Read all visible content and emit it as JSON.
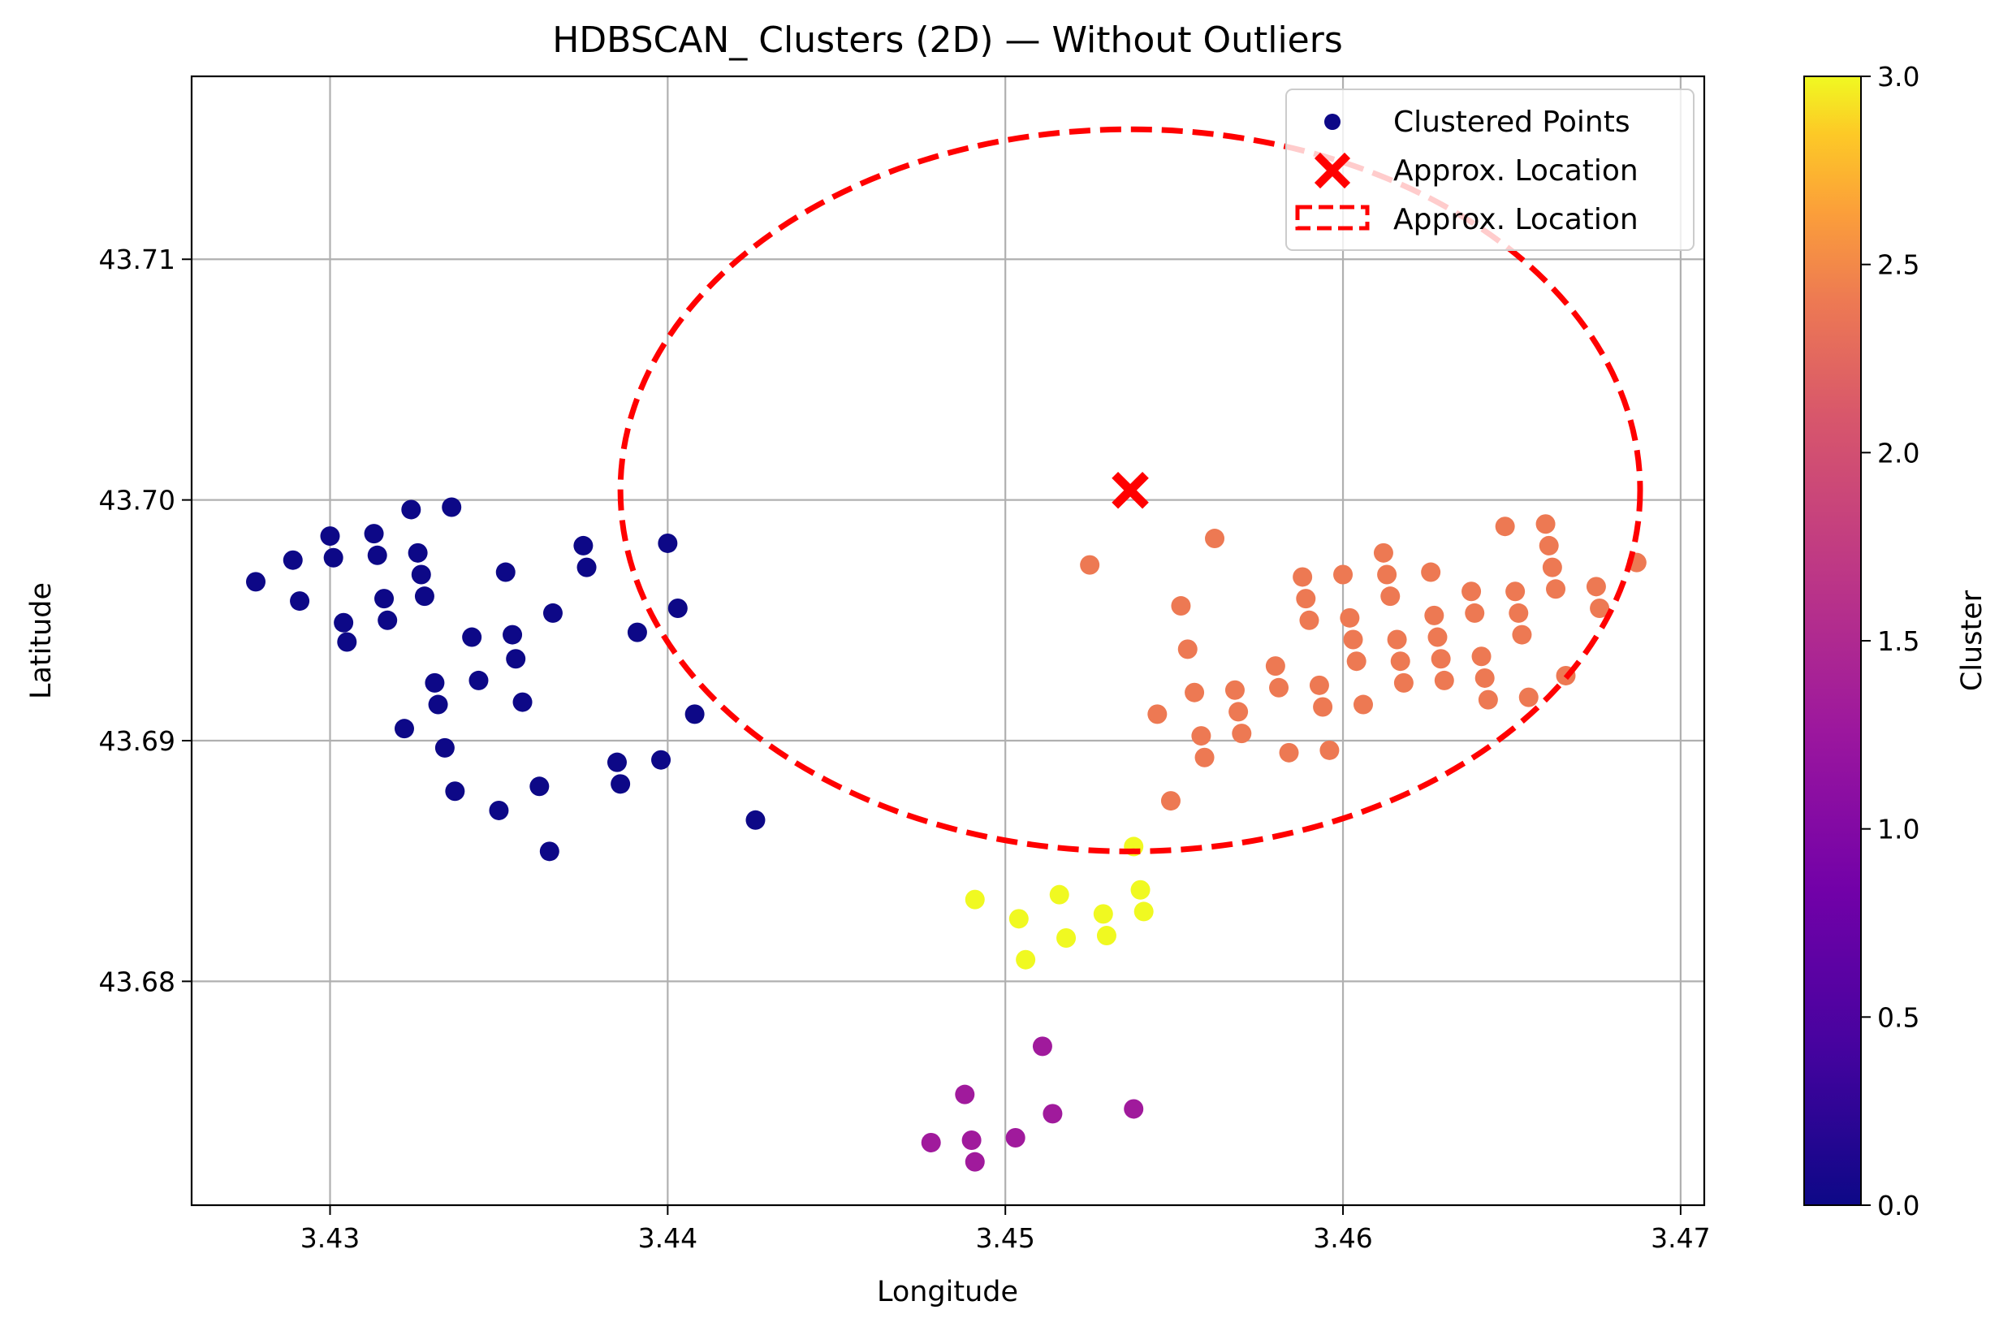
{
  "chart_data": {
    "type": "scatter",
    "title": "HDBSCAN_ Clusters (2D) — Without Outliers",
    "xlabel": "Longitude",
    "ylabel": "Latitude",
    "xlim": [
      3.4259,
      3.4707
    ],
    "ylim": [
      43.6707,
      43.7176
    ],
    "xticks": [
      "3.43",
      "3.44",
      "3.45",
      "3.46",
      "3.47"
    ],
    "yticks": [
      "43.68",
      "43.69",
      "43.70",
      "43.71"
    ],
    "grid": true,
    "legend_position": "upper-right",
    "legend": [
      {
        "label": "Clustered Points",
        "marker": "dot",
        "color": "#0d0887"
      },
      {
        "label": "Approx. Location",
        "marker": "x",
        "color": "#ff0000"
      },
      {
        "label": "Approx. Location",
        "marker": "dashed-box",
        "color": "#ff0000"
      }
    ],
    "colorbar": {
      "label": "Cluster",
      "min": 0.0,
      "max": 3.0,
      "ticks": [
        "0.0",
        "0.5",
        "1.0",
        "1.5",
        "2.0",
        "2.5",
        "3.0"
      ],
      "colormap": "plasma"
    },
    "clusters": [
      {
        "cluster": 0,
        "color": "#0d0887",
        "points": [
          [
            3.4278,
            43.6966
          ],
          [
            3.4289,
            43.6975
          ],
          [
            3.4291,
            43.6958
          ],
          [
            3.43,
            43.6985
          ],
          [
            3.4301,
            43.6976
          ],
          [
            3.4304,
            43.6949
          ],
          [
            3.4305,
            43.6941
          ],
          [
            3.4313,
            43.6986
          ],
          [
            3.4314,
            43.6977
          ],
          [
            3.4316,
            43.6959
          ],
          [
            3.4317,
            43.695
          ],
          [
            3.4322,
            43.6905
          ],
          [
            3.4324,
            43.6996
          ],
          [
            3.4326,
            43.6978
          ],
          [
            3.4327,
            43.6969
          ],
          [
            3.4328,
            43.696
          ],
          [
            3.4331,
            43.6924
          ],
          [
            3.4332,
            43.6915
          ],
          [
            3.4334,
            43.6897
          ],
          [
            3.4336,
            43.6997
          ],
          [
            3.4337,
            43.6879
          ],
          [
            3.4342,
            43.6943
          ],
          [
            3.4344,
            43.6925
          ],
          [
            3.435,
            43.6871
          ],
          [
            3.4352,
            43.697
          ],
          [
            3.4354,
            43.6944
          ],
          [
            3.4355,
            43.6934
          ],
          [
            3.4357,
            43.6916
          ],
          [
            3.4362,
            43.6881
          ],
          [
            3.4365,
            43.6854
          ],
          [
            3.4366,
            43.6953
          ],
          [
            3.4375,
            43.6981
          ],
          [
            3.4376,
            43.6972
          ],
          [
            3.4385,
            43.6891
          ],
          [
            3.4386,
            43.6882
          ],
          [
            3.4391,
            43.6945
          ],
          [
            3.4398,
            43.6892
          ],
          [
            3.44,
            43.6982
          ],
          [
            3.4403,
            43.6955
          ],
          [
            3.4408,
            43.6911
          ],
          [
            3.4426,
            43.6867
          ]
        ]
      },
      {
        "cluster": 1,
        "color": "#a01a9c",
        "points": [
          [
            3.4478,
            43.6733
          ],
          [
            3.4488,
            43.6753
          ],
          [
            3.449,
            43.6734
          ],
          [
            3.4491,
            43.6725
          ],
          [
            3.4503,
            43.6735
          ],
          [
            3.4511,
            43.6773
          ],
          [
            3.4514,
            43.6745
          ],
          [
            3.4538,
            43.6747
          ]
        ]
      },
      {
        "cluster": 2,
        "color": "#ed7953",
        "points": [
          [
            3.4525,
            43.6973
          ],
          [
            3.4545,
            43.6911
          ],
          [
            3.4549,
            43.6875
          ],
          [
            3.4552,
            43.6956
          ],
          [
            3.4554,
            43.6938
          ],
          [
            3.4556,
            43.692
          ],
          [
            3.4558,
            43.6902
          ],
          [
            3.4559,
            43.6893
          ],
          [
            3.4562,
            43.6984
          ],
          [
            3.4568,
            43.6921
          ],
          [
            3.4569,
            43.6912
          ],
          [
            3.457,
            43.6903
          ],
          [
            3.458,
            43.6931
          ],
          [
            3.4581,
            43.6922
          ],
          [
            3.4584,
            43.6895
          ],
          [
            3.4588,
            43.6968
          ],
          [
            3.4589,
            43.6959
          ],
          [
            3.459,
            43.695
          ],
          [
            3.4593,
            43.6923
          ],
          [
            3.4594,
            43.6914
          ],
          [
            3.4596,
            43.6896
          ],
          [
            3.46,
            43.6969
          ],
          [
            3.4602,
            43.6951
          ],
          [
            3.4603,
            43.6942
          ],
          [
            3.4604,
            43.6933
          ],
          [
            3.4606,
            43.6915
          ],
          [
            3.4612,
            43.6978
          ],
          [
            3.4613,
            43.6969
          ],
          [
            3.4614,
            43.696
          ],
          [
            3.4616,
            43.6942
          ],
          [
            3.4617,
            43.6933
          ],
          [
            3.4618,
            43.6924
          ],
          [
            3.4626,
            43.697
          ],
          [
            3.4627,
            43.6952
          ],
          [
            3.4628,
            43.6943
          ],
          [
            3.4629,
            43.6934
          ],
          [
            3.463,
            43.6925
          ],
          [
            3.4638,
            43.6962
          ],
          [
            3.4639,
            43.6953
          ],
          [
            3.4641,
            43.6935
          ],
          [
            3.4642,
            43.6926
          ],
          [
            3.4643,
            43.6917
          ],
          [
            3.4648,
            43.6989
          ],
          [
            3.4651,
            43.6962
          ],
          [
            3.4652,
            43.6953
          ],
          [
            3.4653,
            43.6944
          ],
          [
            3.4655,
            43.6918
          ],
          [
            3.466,
            43.699
          ],
          [
            3.4661,
            43.6981
          ],
          [
            3.4662,
            43.6972
          ],
          [
            3.4663,
            43.6963
          ],
          [
            3.4666,
            43.6927
          ],
          [
            3.4675,
            43.6964
          ],
          [
            3.4676,
            43.6955
          ],
          [
            3.4687,
            43.6974
          ]
        ]
      },
      {
        "cluster": 3,
        "color": "#f0f921",
        "points": [
          [
            3.4491,
            43.6834
          ],
          [
            3.4504,
            43.6826
          ],
          [
            3.4506,
            43.6809
          ],
          [
            3.4516,
            43.6836
          ],
          [
            3.4518,
            43.6818
          ],
          [
            3.4529,
            43.6828
          ],
          [
            3.453,
            43.6819
          ],
          [
            3.4538,
            43.6856
          ],
          [
            3.454,
            43.6838
          ],
          [
            3.4541,
            43.6829
          ]
        ]
      }
    ],
    "approx_location": {
      "center": [
        3.4537,
        43.7004
      ],
      "ellipse_width": 0.0302,
      "ellipse_height": 0.03,
      "color": "#ff0000"
    }
  }
}
